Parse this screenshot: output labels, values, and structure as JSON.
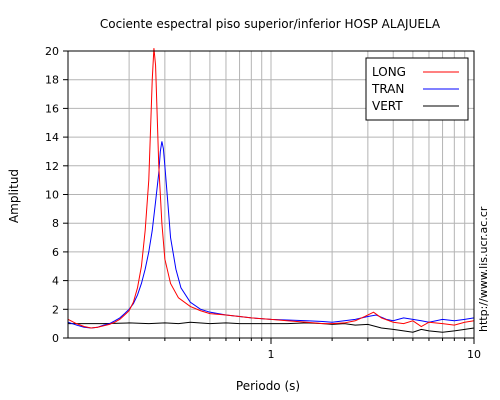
{
  "chart_data": {
    "type": "line",
    "title": "Cociente espectral piso superior/inferior  HOSP ALAJUELA",
    "xlabel": "Periodo (s)",
    "ylabel": "Amplitud",
    "x_scale": "log",
    "xlim": [
      0.1,
      10
    ],
    "ylim": [
      0,
      20
    ],
    "x_tick_labels": [
      {
        "value": 1,
        "label": "1"
      },
      {
        "value": 10,
        "label": "10"
      }
    ],
    "y_ticks": [
      0,
      2,
      4,
      6,
      8,
      10,
      12,
      14,
      16,
      18,
      20
    ],
    "grid": true,
    "legend_position": "top-right",
    "side_text": "http://www.lis.ucr.ac.cr",
    "series": [
      {
        "name": "LONG",
        "color": "#ff0000",
        "points": [
          [
            0.1,
            1.3
          ],
          [
            0.11,
            1.0
          ],
          [
            0.12,
            0.8
          ],
          [
            0.13,
            0.7
          ],
          [
            0.14,
            0.75
          ],
          [
            0.15,
            0.85
          ],
          [
            0.16,
            0.95
          ],
          [
            0.17,
            1.1
          ],
          [
            0.18,
            1.3
          ],
          [
            0.19,
            1.6
          ],
          [
            0.2,
            1.9
          ],
          [
            0.21,
            2.5
          ],
          [
            0.22,
            3.5
          ],
          [
            0.23,
            5.0
          ],
          [
            0.24,
            7.5
          ],
          [
            0.25,
            11.0
          ],
          [
            0.255,
            14.5
          ],
          [
            0.26,
            18.0
          ],
          [
            0.265,
            20.2
          ],
          [
            0.27,
            19.0
          ],
          [
            0.275,
            15.5
          ],
          [
            0.28,
            12.0
          ],
          [
            0.29,
            8.0
          ],
          [
            0.3,
            5.5
          ],
          [
            0.32,
            3.8
          ],
          [
            0.35,
            2.8
          ],
          [
            0.4,
            2.2
          ],
          [
            0.45,
            1.9
          ],
          [
            0.5,
            1.7
          ],
          [
            0.6,
            1.6
          ],
          [
            0.7,
            1.5
          ],
          [
            0.8,
            1.4
          ],
          [
            1.0,
            1.3
          ],
          [
            1.2,
            1.2
          ],
          [
            1.5,
            1.1
          ],
          [
            1.8,
            1.0
          ],
          [
            2.0,
            1.0
          ],
          [
            2.3,
            1.05
          ],
          [
            2.6,
            1.2
          ],
          [
            2.9,
            1.5
          ],
          [
            3.2,
            1.8
          ],
          [
            3.5,
            1.4
          ],
          [
            4.0,
            1.1
          ],
          [
            4.5,
            1.0
          ],
          [
            5.0,
            1.2
          ],
          [
            5.5,
            0.8
          ],
          [
            6.0,
            1.1
          ],
          [
            7.0,
            1.0
          ],
          [
            8.0,
            0.9
          ],
          [
            9.0,
            1.1
          ],
          [
            10.0,
            1.2
          ]
        ]
      },
      {
        "name": "TRAN",
        "color": "#0000ff",
        "points": [
          [
            0.1,
            1.1
          ],
          [
            0.11,
            0.9
          ],
          [
            0.12,
            0.75
          ],
          [
            0.13,
            0.7
          ],
          [
            0.14,
            0.75
          ],
          [
            0.15,
            0.9
          ],
          [
            0.16,
            1.0
          ],
          [
            0.17,
            1.2
          ],
          [
            0.18,
            1.4
          ],
          [
            0.19,
            1.7
          ],
          [
            0.2,
            2.0
          ],
          [
            0.21,
            2.4
          ],
          [
            0.22,
            3.0
          ],
          [
            0.23,
            3.8
          ],
          [
            0.24,
            4.8
          ],
          [
            0.25,
            6.0
          ],
          [
            0.26,
            7.5
          ],
          [
            0.27,
            9.5
          ],
          [
            0.28,
            11.5
          ],
          [
            0.285,
            13.0
          ],
          [
            0.29,
            13.7
          ],
          [
            0.295,
            13.2
          ],
          [
            0.3,
            12.0
          ],
          [
            0.31,
            9.5
          ],
          [
            0.32,
            7.0
          ],
          [
            0.34,
            4.8
          ],
          [
            0.36,
            3.5
          ],
          [
            0.4,
            2.5
          ],
          [
            0.45,
            2.0
          ],
          [
            0.5,
            1.8
          ],
          [
            0.6,
            1.6
          ],
          [
            0.7,
            1.5
          ],
          [
            0.8,
            1.4
          ],
          [
            1.0,
            1.3
          ],
          [
            1.2,
            1.25
          ],
          [
            1.5,
            1.2
          ],
          [
            1.8,
            1.15
          ],
          [
            2.0,
            1.1
          ],
          [
            2.3,
            1.2
          ],
          [
            2.6,
            1.3
          ],
          [
            3.0,
            1.5
          ],
          [
            3.3,
            1.6
          ],
          [
            3.7,
            1.3
          ],
          [
            4.0,
            1.2
          ],
          [
            4.5,
            1.4
          ],
          [
            5.0,
            1.3
          ],
          [
            5.5,
            1.2
          ],
          [
            6.0,
            1.1
          ],
          [
            7.0,
            1.3
          ],
          [
            8.0,
            1.2
          ],
          [
            9.0,
            1.3
          ],
          [
            10.0,
            1.4
          ]
        ]
      },
      {
        "name": "VERT",
        "color": "#000000",
        "points": [
          [
            0.1,
            1.0
          ],
          [
            0.12,
            1.0
          ],
          [
            0.15,
            1.0
          ],
          [
            0.2,
            1.05
          ],
          [
            0.25,
            1.0
          ],
          [
            0.3,
            1.05
          ],
          [
            0.35,
            1.0
          ],
          [
            0.4,
            1.1
          ],
          [
            0.5,
            1.0
          ],
          [
            0.6,
            1.05
          ],
          [
            0.7,
            1.0
          ],
          [
            0.8,
            1.0
          ],
          [
            1.0,
            1.0
          ],
          [
            1.2,
            1.0
          ],
          [
            1.5,
            1.05
          ],
          [
            1.8,
            1.0
          ],
          [
            2.0,
            0.95
          ],
          [
            2.3,
            1.0
          ],
          [
            2.6,
            0.9
          ],
          [
            3.0,
            0.95
          ],
          [
            3.5,
            0.7
          ],
          [
            4.0,
            0.6
          ],
          [
            4.5,
            0.5
          ],
          [
            5.0,
            0.4
          ],
          [
            5.5,
            0.6
          ],
          [
            6.0,
            0.5
          ],
          [
            7.0,
            0.4
          ],
          [
            8.0,
            0.5
          ],
          [
            9.0,
            0.6
          ],
          [
            10.0,
            0.7
          ]
        ]
      }
    ]
  }
}
